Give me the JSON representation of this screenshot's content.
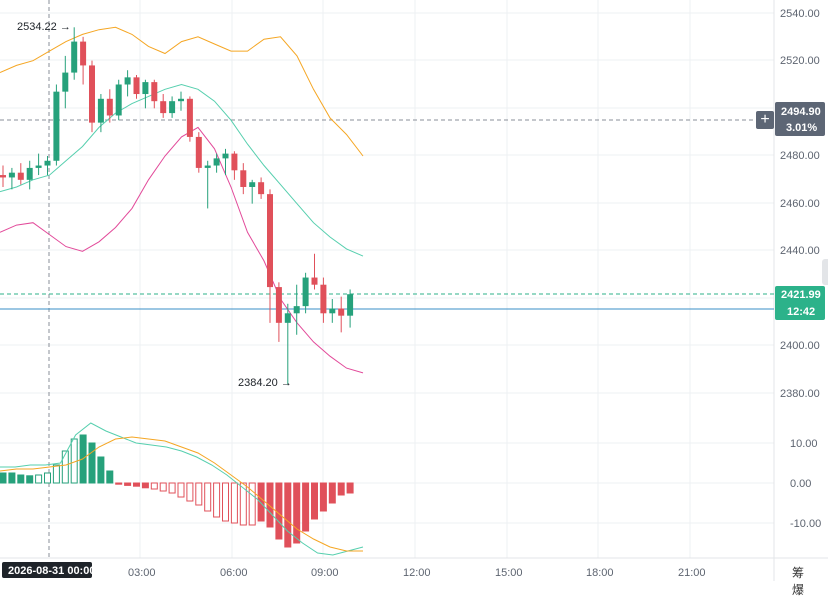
{
  "chart_data": {
    "type": "candlestick",
    "price_axis": {
      "ticks": [
        2540,
        2520,
        2500,
        2480,
        2460,
        2440,
        2420,
        2400,
        2380
      ],
      "labels": [
        "2540.00",
        "2520.00",
        "2480.00",
        "2460.00",
        "2440.00",
        "2400.00",
        "2380.00"
      ]
    },
    "macd_axis": {
      "labels": [
        "10.00",
        "0.00",
        "-10.00"
      ]
    },
    "time_axis": {
      "labels": [
        "03:00",
        "06:00",
        "09:00",
        "12:00",
        "15:00",
        "18:00",
        "21:00"
      ]
    },
    "crosshair_date": "2026-08-31 00:00",
    "crosshair_price": "2494.90",
    "crosshair_pct": "3.01%",
    "last_price": "2421.99",
    "countdown": "12:42",
    "annotations": {
      "high": "2534.22",
      "low": "2384.20"
    },
    "candles": [
      {
        "o": 2472,
        "h": 2476,
        "l": 2467,
        "c": 2471
      },
      {
        "o": 2471,
        "h": 2475,
        "l": 2466,
        "c": 2473
      },
      {
        "o": 2473,
        "h": 2477,
        "l": 2468,
        "c": 2470
      },
      {
        "o": 2470,
        "h": 2478,
        "l": 2466,
        "c": 2475
      },
      {
        "o": 2475,
        "h": 2481,
        "l": 2472,
        "c": 2476
      },
      {
        "o": 2476,
        "h": 2480,
        "l": 2472,
        "c": 2478
      },
      {
        "o": 2478,
        "h": 2510,
        "l": 2476,
        "c": 2507
      },
      {
        "o": 2507,
        "h": 2522,
        "l": 2500,
        "c": 2515
      },
      {
        "o": 2515,
        "h": 2534,
        "l": 2512,
        "c": 2528
      },
      {
        "o": 2528,
        "h": 2530,
        "l": 2510,
        "c": 2518
      },
      {
        "o": 2518,
        "h": 2520,
        "l": 2490,
        "c": 2494
      },
      {
        "o": 2494,
        "h": 2506,
        "l": 2490,
        "c": 2504
      },
      {
        "o": 2504,
        "h": 2508,
        "l": 2494,
        "c": 2497
      },
      {
        "o": 2497,
        "h": 2512,
        "l": 2495,
        "c": 2510
      },
      {
        "o": 2510,
        "h": 2516,
        "l": 2505,
        "c": 2513
      },
      {
        "o": 2513,
        "h": 2514,
        "l": 2504,
        "c": 2506
      },
      {
        "o": 2506,
        "h": 2512,
        "l": 2500,
        "c": 2511
      },
      {
        "o": 2511,
        "h": 2512,
        "l": 2500,
        "c": 2503
      },
      {
        "o": 2503,
        "h": 2506,
        "l": 2496,
        "c": 2498
      },
      {
        "o": 2498,
        "h": 2505,
        "l": 2496,
        "c": 2503
      },
      {
        "o": 2503,
        "h": 2507,
        "l": 2499,
        "c": 2504
      },
      {
        "o": 2504,
        "h": 2505,
        "l": 2486,
        "c": 2488
      },
      {
        "o": 2488,
        "h": 2490,
        "l": 2473,
        "c": 2475
      },
      {
        "o": 2475,
        "h": 2478,
        "l": 2458,
        "c": 2476
      },
      {
        "o": 2476,
        "h": 2481,
        "l": 2473,
        "c": 2479
      },
      {
        "o": 2479,
        "h": 2483,
        "l": 2472,
        "c": 2481
      },
      {
        "o": 2481,
        "h": 2482,
        "l": 2470,
        "c": 2474
      },
      {
        "o": 2474,
        "h": 2477,
        "l": 2464,
        "c": 2467
      },
      {
        "o": 2467,
        "h": 2470,
        "l": 2460,
        "c": 2469
      },
      {
        "o": 2469,
        "h": 2471,
        "l": 2462,
        "c": 2464
      },
      {
        "o": 2464,
        "h": 2466,
        "l": 2410,
        "c": 2425
      },
      {
        "o": 2425,
        "h": 2427,
        "l": 2402,
        "c": 2410
      },
      {
        "o": 2410,
        "h": 2418,
        "l": 2384,
        "c": 2414
      },
      {
        "o": 2414,
        "h": 2426,
        "l": 2405,
        "c": 2417
      },
      {
        "o": 2417,
        "h": 2431,
        "l": 2414,
        "c": 2429
      },
      {
        "o": 2429,
        "h": 2439,
        "l": 2424,
        "c": 2426
      },
      {
        "o": 2426,
        "h": 2429,
        "l": 2410,
        "c": 2414
      },
      {
        "o": 2414,
        "h": 2420,
        "l": 2410,
        "c": 2416
      },
      {
        "o": 2416,
        "h": 2421,
        "l": 2406,
        "c": 2413
      },
      {
        "o": 2413,
        "h": 2424,
        "l": 2408,
        "c": 2422
      }
    ],
    "bb_upper": [
      2515,
      2518,
      2520,
      2524,
      2528,
      2531,
      2533,
      2534,
      2531,
      2526,
      2523,
      2528,
      2530,
      2527,
      2524,
      2524,
      2529,
      2530,
      2522,
      2508,
      2496,
      2489,
      2480
    ],
    "bb_middle": [
      2465,
      2467,
      2470,
      2472,
      2478,
      2484,
      2492,
      2498,
      2502,
      2505,
      2508,
      2510,
      2508,
      2503,
      2495,
      2485,
      2476,
      2468,
      2460,
      2452,
      2446,
      2441,
      2438
    ],
    "bb_lower": [
      2448,
      2451,
      2452,
      2447,
      2442,
      2440,
      2444,
      2450,
      2458,
      2470,
      2480,
      2488,
      2492,
      2483,
      2467,
      2448,
      2436,
      2420,
      2410,
      2402,
      2396,
      2391,
      2389
    ],
    "macd_hist": [
      2.5,
      2.5,
      2.0,
      1.8,
      2.0,
      2.5,
      4.5,
      8,
      11,
      12,
      10,
      6.5,
      3,
      -0.3,
      -0.6,
      -0.8,
      -1.2,
      -1.5,
      -2.0,
      -2.5,
      -3.5,
      -4.5,
      -5.5,
      -7,
      -8.5,
      -9.5,
      -10,
      -10.5,
      -10.5,
      -9.5,
      -11,
      -14,
      -16,
      -15,
      -12,
      -9,
      -7,
      -5,
      -3,
      -2.5
    ],
    "macd_line": [
      4,
      4,
      4.5,
      4.5,
      5,
      12,
      15,
      13,
      11.5,
      10,
      9.5,
      9,
      8,
      6.5,
      4.5,
      2,
      -1,
      -4,
      -8,
      -12,
      -15,
      -17.5,
      -18,
      -17,
      -16
    ],
    "signal_line": [
      3,
      3.5,
      3.5,
      4,
      4.5,
      6,
      9,
      11,
      11.5,
      11,
      10.5,
      9,
      7.5,
      5,
      2,
      -1,
      -4.5,
      -8,
      -11.5,
      -14,
      -16,
      -17,
      -17
    ],
    "colors": {
      "up": "#26a17b",
      "down": "#e0505a",
      "bb_upper": "#f5a623",
      "bb_middle": "#56cfae",
      "bb_lower": "#e24a9a",
      "grid": "#eef0f3",
      "last_price_tag": "#2cb28a",
      "crosshair_tag": "#5d6675"
    }
  },
  "footer": {
    "btn1": "筹",
    "btn2": "爆"
  },
  "icons": {
    "plus": "plus-icon"
  }
}
